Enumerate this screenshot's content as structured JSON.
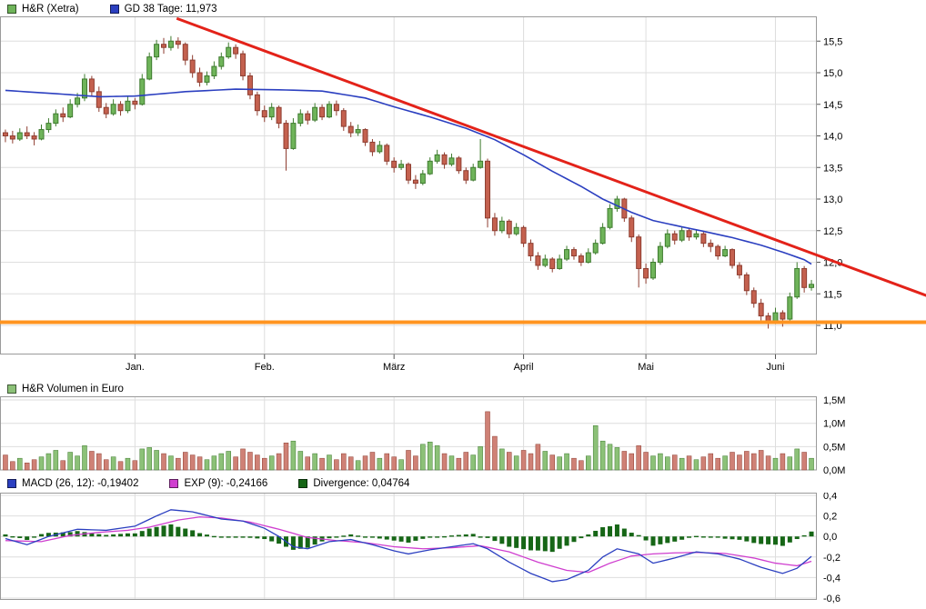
{
  "legend_main": {
    "price_label": "H&R (Xetra)",
    "ma_label": "GD 38 Tage: 11,973"
  },
  "legend_volume": {
    "label": "H&R Volumen in Euro"
  },
  "legend_macd": {
    "macd_label": "MACD (26, 12): -0,19402",
    "exp_label": "EXP (9): -0,24166",
    "divergence_label": "Divergence: 0,04764"
  },
  "colors": {
    "up": "#6fb45a",
    "up_border": "#3e7b2e",
    "down": "#c4614f",
    "down_border": "#8e3d30",
    "vol_up": "#8cc178",
    "vol_down": "#cf8176",
    "ma": "#2b3fc0",
    "trend": "#e32219",
    "hline": "#ff9420",
    "macd": "#2b3fc0",
    "exp": "#cf3ecf",
    "divergence": "#166616",
    "grid": "#dedede",
    "border": "#9a9a9a",
    "tick": "#555555"
  },
  "chart_data": [
    {
      "type": "candlestick",
      "title": "H&R (Xetra)",
      "ylim": [
        10.53,
        15.89
      ],
      "hline": 11.05,
      "trendline": {
        "i1": 23.8,
        "v1": 15.86,
        "i2": 128.5,
        "v2": 11.45
      },
      "yticks": [
        {
          "v": 15.5,
          "label": "15,5"
        },
        {
          "v": 15.0,
          "label": "15,0"
        },
        {
          "v": 14.5,
          "label": "14,5"
        },
        {
          "v": 14.0,
          "label": "14,0"
        },
        {
          "v": 13.5,
          "label": "13,5"
        },
        {
          "v": 13.0,
          "label": "13,0"
        },
        {
          "v": 12.5,
          "label": "12,5"
        },
        {
          "v": 12.0,
          "label": "12,0"
        },
        {
          "v": 11.5,
          "label": "11,5"
        },
        {
          "v": 11.0,
          "label": "11,0"
        }
      ],
      "months": [
        {
          "label": "Jan.",
          "i": 18
        },
        {
          "label": "Feb.",
          "i": 36
        },
        {
          "label": "März",
          "i": 54
        },
        {
          "label": "April",
          "i": 72
        },
        {
          "label": "Mai",
          "i": 89
        },
        {
          "label": "Juni",
          "i": 107
        }
      ],
      "ma_name": "GD 38 Tage",
      "ma_last": 11.973,
      "ma_points": [
        [
          0,
          14.72
        ],
        [
          8,
          14.66
        ],
        [
          13,
          14.62
        ],
        [
          18,
          14.63
        ],
        [
          25,
          14.7
        ],
        [
          32,
          14.74
        ],
        [
          38,
          14.73
        ],
        [
          44,
          14.71
        ],
        [
          50,
          14.6
        ],
        [
          54,
          14.46
        ],
        [
          59,
          14.3
        ],
        [
          64,
          14.12
        ],
        [
          68,
          13.94
        ],
        [
          72,
          13.7
        ],
        [
          76,
          13.44
        ],
        [
          80,
          13.2
        ],
        [
          83,
          13.0
        ],
        [
          87,
          12.79
        ],
        [
          90,
          12.66
        ],
        [
          94,
          12.56
        ],
        [
          97,
          12.49
        ],
        [
          101,
          12.39
        ],
        [
          105,
          12.27
        ],
        [
          108,
          12.16
        ],
        [
          111,
          12.04
        ],
        [
          112,
          11.97
        ]
      ],
      "candles": [
        [
          14.05,
          14.1,
          13.9,
          14.0
        ],
        [
          14.0,
          14.08,
          13.88,
          13.95
        ],
        [
          13.95,
          14.12,
          13.92,
          14.05
        ],
        [
          14.05,
          14.15,
          13.95,
          14.0
        ],
        [
          14.0,
          14.06,
          13.85,
          13.95
        ],
        [
          13.95,
          14.18,
          13.93,
          14.1
        ],
        [
          14.1,
          14.28,
          14.05,
          14.2
        ],
        [
          14.2,
          14.42,
          14.15,
          14.35
        ],
        [
          14.35,
          14.45,
          14.22,
          14.3
        ],
        [
          14.3,
          14.58,
          14.28,
          14.5
        ],
        [
          14.5,
          14.68,
          14.45,
          14.6
        ],
        [
          14.6,
          14.98,
          14.55,
          14.9
        ],
        [
          14.9,
          14.95,
          14.62,
          14.7
        ],
        [
          14.7,
          14.78,
          14.38,
          14.45
        ],
        [
          14.45,
          14.52,
          14.28,
          14.35
        ],
        [
          14.35,
          14.58,
          14.32,
          14.5
        ],
        [
          14.5,
          14.55,
          14.32,
          14.4
        ],
        [
          14.4,
          14.62,
          14.36,
          14.55
        ],
        [
          14.55,
          14.6,
          14.42,
          14.5
        ],
        [
          14.5,
          14.98,
          14.48,
          14.9
        ],
        [
          14.9,
          15.32,
          14.88,
          15.25
        ],
        [
          15.25,
          15.52,
          15.2,
          15.45
        ],
        [
          15.45,
          15.55,
          15.3,
          15.4
        ],
        [
          15.4,
          15.58,
          15.35,
          15.5
        ],
        [
          15.5,
          15.56,
          15.38,
          15.45
        ],
        [
          15.45,
          15.48,
          15.12,
          15.2
        ],
        [
          15.2,
          15.28,
          14.92,
          15.0
        ],
        [
          15.0,
          15.08,
          14.78,
          14.85
        ],
        [
          14.85,
          15.02,
          14.8,
          14.95
        ],
        [
          14.95,
          15.18,
          14.9,
          15.1
        ],
        [
          15.1,
          15.32,
          15.05,
          15.25
        ],
        [
          15.25,
          15.48,
          15.22,
          15.4
        ],
        [
          15.4,
          15.45,
          15.22,
          15.3
        ],
        [
          15.3,
          15.35,
          14.88,
          14.95
        ],
        [
          14.95,
          15.0,
          14.58,
          14.65
        ],
        [
          14.65,
          14.7,
          14.32,
          14.4
        ],
        [
          14.4,
          14.48,
          14.22,
          14.3
        ],
        [
          14.3,
          14.52,
          14.25,
          14.45
        ],
        [
          14.45,
          14.48,
          14.12,
          14.2
        ],
        [
          14.2,
          14.25,
          13.45,
          13.8
        ],
        [
          13.8,
          14.28,
          13.78,
          14.2
        ],
        [
          14.2,
          14.42,
          14.15,
          14.35
        ],
        [
          14.35,
          14.4,
          14.18,
          14.25
        ],
        [
          14.25,
          14.52,
          14.22,
          14.45
        ],
        [
          14.45,
          14.5,
          14.25,
          14.3
        ],
        [
          14.3,
          14.55,
          14.28,
          14.5
        ],
        [
          14.5,
          14.56,
          14.32,
          14.4
        ],
        [
          14.4,
          14.44,
          14.08,
          14.15
        ],
        [
          14.15,
          14.22,
          13.98,
          14.05
        ],
        [
          14.05,
          14.18,
          14.0,
          14.1
        ],
        [
          14.1,
          14.12,
          13.84,
          13.9
        ],
        [
          13.9,
          13.95,
          13.68,
          13.75
        ],
        [
          13.75,
          13.92,
          13.72,
          13.85
        ],
        [
          13.85,
          13.88,
          13.54,
          13.6
        ],
        [
          13.6,
          13.66,
          13.42,
          13.5
        ],
        [
          13.5,
          13.62,
          13.46,
          13.55
        ],
        [
          13.55,
          13.58,
          13.24,
          13.3
        ],
        [
          13.3,
          13.38,
          13.16,
          13.25
        ],
        [
          13.25,
          13.46,
          13.22,
          13.4
        ],
        [
          13.4,
          13.66,
          13.38,
          13.6
        ],
        [
          13.6,
          13.78,
          13.56,
          13.7
        ],
        [
          13.7,
          13.74,
          13.48,
          13.55
        ],
        [
          13.55,
          13.72,
          13.52,
          13.65
        ],
        [
          13.65,
          13.68,
          13.4,
          13.45
        ],
        [
          13.45,
          13.5,
          13.24,
          13.3
        ],
        [
          13.3,
          13.56,
          13.28,
          13.5
        ],
        [
          13.5,
          13.95,
          13.48,
          13.6
        ],
        [
          13.6,
          13.64,
          12.55,
          12.7
        ],
        [
          12.7,
          12.78,
          12.42,
          12.5
        ],
        [
          12.5,
          12.72,
          12.46,
          12.65
        ],
        [
          12.65,
          12.68,
          12.38,
          12.45
        ],
        [
          12.45,
          12.62,
          12.42,
          12.55
        ],
        [
          12.55,
          12.58,
          12.24,
          12.3
        ],
        [
          12.3,
          12.36,
          12.02,
          12.1
        ],
        [
          12.1,
          12.16,
          11.88,
          11.95
        ],
        [
          11.95,
          12.12,
          11.92,
          12.05
        ],
        [
          12.05,
          12.08,
          11.84,
          11.9
        ],
        [
          11.9,
          12.12,
          11.88,
          12.05
        ],
        [
          12.05,
          12.26,
          12.02,
          12.2
        ],
        [
          12.2,
          12.24,
          12.04,
          12.1
        ],
        [
          12.1,
          12.14,
          11.94,
          12.0
        ],
        [
          12.0,
          12.22,
          11.98,
          12.15
        ],
        [
          12.15,
          12.36,
          12.12,
          12.3
        ],
        [
          12.3,
          12.62,
          12.28,
          12.55
        ],
        [
          12.55,
          12.92,
          12.52,
          12.85
        ],
        [
          12.85,
          13.05,
          12.8,
          13.0
        ],
        [
          13.0,
          13.02,
          12.64,
          12.7
        ],
        [
          12.7,
          12.74,
          12.32,
          12.4
        ],
        [
          12.4,
          12.44,
          11.6,
          11.9
        ],
        [
          11.9,
          11.98,
          11.66,
          11.75
        ],
        [
          11.75,
          12.06,
          11.72,
          12.0
        ],
        [
          12.0,
          12.32,
          11.96,
          12.25
        ],
        [
          12.25,
          12.52,
          12.22,
          12.45
        ],
        [
          12.45,
          12.5,
          12.28,
          12.35
        ],
        [
          12.35,
          12.56,
          12.32,
          12.5
        ],
        [
          12.5,
          12.54,
          12.34,
          12.4
        ],
        [
          12.4,
          12.52,
          12.36,
          12.45
        ],
        [
          12.45,
          12.48,
          12.24,
          12.3
        ],
        [
          12.3,
          12.36,
          12.16,
          12.25
        ],
        [
          12.25,
          12.28,
          12.04,
          12.1
        ],
        [
          12.1,
          12.26,
          12.08,
          12.2
        ],
        [
          12.2,
          12.22,
          11.9,
          11.95
        ],
        [
          11.95,
          12.0,
          11.74,
          11.8
        ],
        [
          11.8,
          11.84,
          11.48,
          11.55
        ],
        [
          11.55,
          11.6,
          11.28,
          11.35
        ],
        [
          11.35,
          11.42,
          11.08,
          11.15
        ],
        [
          11.15,
          11.2,
          10.95,
          11.05
        ],
        [
          11.05,
          11.28,
          11.02,
          11.2
        ],
        [
          11.2,
          11.24,
          10.98,
          11.1
        ],
        [
          11.1,
          11.52,
          11.06,
          11.45
        ],
        [
          11.45,
          12.0,
          11.42,
          11.9
        ],
        [
          11.9,
          11.94,
          11.52,
          11.6
        ],
        [
          11.6,
          11.72,
          11.55,
          11.65
        ]
      ]
    },
    {
      "type": "bar",
      "title": "H&R Volumen in Euro",
      "unit": "M",
      "ylim": [
        0,
        1.5
      ],
      "yticks": [
        {
          "v": 1.5,
          "label": "1,5M"
        },
        {
          "v": 1.0,
          "label": "1,0M"
        },
        {
          "v": 0.5,
          "label": "0,5M"
        },
        {
          "v": 0.0,
          "label": "0,0M"
        }
      ],
      "values": [
        0.32,
        0.18,
        0.25,
        0.15,
        0.22,
        0.28,
        0.35,
        0.42,
        0.2,
        0.38,
        0.3,
        0.52,
        0.4,
        0.35,
        0.22,
        0.28,
        0.18,
        0.25,
        0.2,
        0.45,
        0.48,
        0.42,
        0.35,
        0.3,
        0.25,
        0.38,
        0.32,
        0.28,
        0.22,
        0.3,
        0.35,
        0.4,
        0.28,
        0.45,
        0.38,
        0.32,
        0.25,
        0.3,
        0.35,
        0.58,
        0.62,
        0.4,
        0.28,
        0.35,
        0.25,
        0.32,
        0.22,
        0.35,
        0.28,
        0.2,
        0.3,
        0.38,
        0.25,
        0.35,
        0.28,
        0.22,
        0.42,
        0.3,
        0.55,
        0.6,
        0.52,
        0.35,
        0.3,
        0.25,
        0.38,
        0.32,
        0.5,
        1.25,
        0.72,
        0.45,
        0.38,
        0.3,
        0.42,
        0.35,
        0.55,
        0.4,
        0.32,
        0.28,
        0.35,
        0.25,
        0.2,
        0.3,
        0.95,
        0.62,
        0.55,
        0.48,
        0.4,
        0.35,
        0.52,
        0.38,
        0.3,
        0.35,
        0.28,
        0.32,
        0.25,
        0.3,
        0.22,
        0.28,
        0.35,
        0.25,
        0.3,
        0.38,
        0.32,
        0.4,
        0.35,
        0.42,
        0.3,
        0.25,
        0.35,
        0.28,
        0.45,
        0.38,
        0.25
      ]
    },
    {
      "type": "line",
      "title": "MACD",
      "macd_value": -0.19402,
      "exp_value": -0.24166,
      "divergence_value": 0.04764,
      "ylim": [
        -0.62,
        0.43
      ],
      "yticks": [
        {
          "v": 0.4,
          "label": "0,4"
        },
        {
          "v": 0.2,
          "label": "0,2"
        },
        {
          "v": 0.0,
          "label": "0,0"
        },
        {
          "v": -0.2,
          "label": "-0,2"
        },
        {
          "v": -0.4,
          "label": "-0,4"
        },
        {
          "v": -0.6,
          "label": "-0,6"
        }
      ],
      "macd_points": [
        [
          0,
          -0.02
        ],
        [
          3,
          -0.08
        ],
        [
          6,
          0.0
        ],
        [
          10,
          0.07
        ],
        [
          14,
          0.06
        ],
        [
          18,
          0.1
        ],
        [
          21,
          0.2
        ],
        [
          23,
          0.26
        ],
        [
          26,
          0.24
        ],
        [
          30,
          0.17
        ],
        [
          33,
          0.15
        ],
        [
          36,
          0.08
        ],
        [
          38,
          0.0
        ],
        [
          40,
          -0.1
        ],
        [
          42,
          -0.12
        ],
        [
          45,
          -0.05
        ],
        [
          48,
          -0.03
        ],
        [
          51,
          -0.08
        ],
        [
          54,
          -0.14
        ],
        [
          56,
          -0.17
        ],
        [
          59,
          -0.13
        ],
        [
          62,
          -0.1
        ],
        [
          65,
          -0.07
        ],
        [
          67,
          -0.12
        ],
        [
          70,
          -0.25
        ],
        [
          73,
          -0.36
        ],
        [
          76,
          -0.44
        ],
        [
          78,
          -0.42
        ],
        [
          81,
          -0.33
        ],
        [
          83,
          -0.2
        ],
        [
          85,
          -0.12
        ],
        [
          88,
          -0.17
        ],
        [
          90,
          -0.26
        ],
        [
          93,
          -0.21
        ],
        [
          96,
          -0.15
        ],
        [
          99,
          -0.17
        ],
        [
          102,
          -0.22
        ],
        [
          105,
          -0.3
        ],
        [
          108,
          -0.36
        ],
        [
          110,
          -0.31
        ],
        [
          112,
          -0.194
        ]
      ],
      "exp_points": [
        [
          0,
          -0.04
        ],
        [
          5,
          -0.05
        ],
        [
          9,
          0.01
        ],
        [
          13,
          0.04
        ],
        [
          17,
          0.06
        ],
        [
          20,
          0.09
        ],
        [
          24,
          0.16
        ],
        [
          27,
          0.19
        ],
        [
          30,
          0.18
        ],
        [
          34,
          0.14
        ],
        [
          38,
          0.07
        ],
        [
          42,
          -0.01
        ],
        [
          46,
          -0.04
        ],
        [
          50,
          -0.06
        ],
        [
          54,
          -0.1
        ],
        [
          58,
          -0.12
        ],
        [
          62,
          -0.11
        ],
        [
          66,
          -0.09
        ],
        [
          70,
          -0.15
        ],
        [
          74,
          -0.25
        ],
        [
          78,
          -0.33
        ],
        [
          81,
          -0.35
        ],
        [
          84,
          -0.26
        ],
        [
          87,
          -0.19
        ],
        [
          90,
          -0.17
        ],
        [
          93,
          -0.16
        ],
        [
          96,
          -0.155
        ],
        [
          100,
          -0.165
        ],
        [
          104,
          -0.21
        ],
        [
          107,
          -0.26
        ],
        [
          110,
          -0.285
        ],
        [
          112,
          -0.242
        ]
      ]
    }
  ]
}
